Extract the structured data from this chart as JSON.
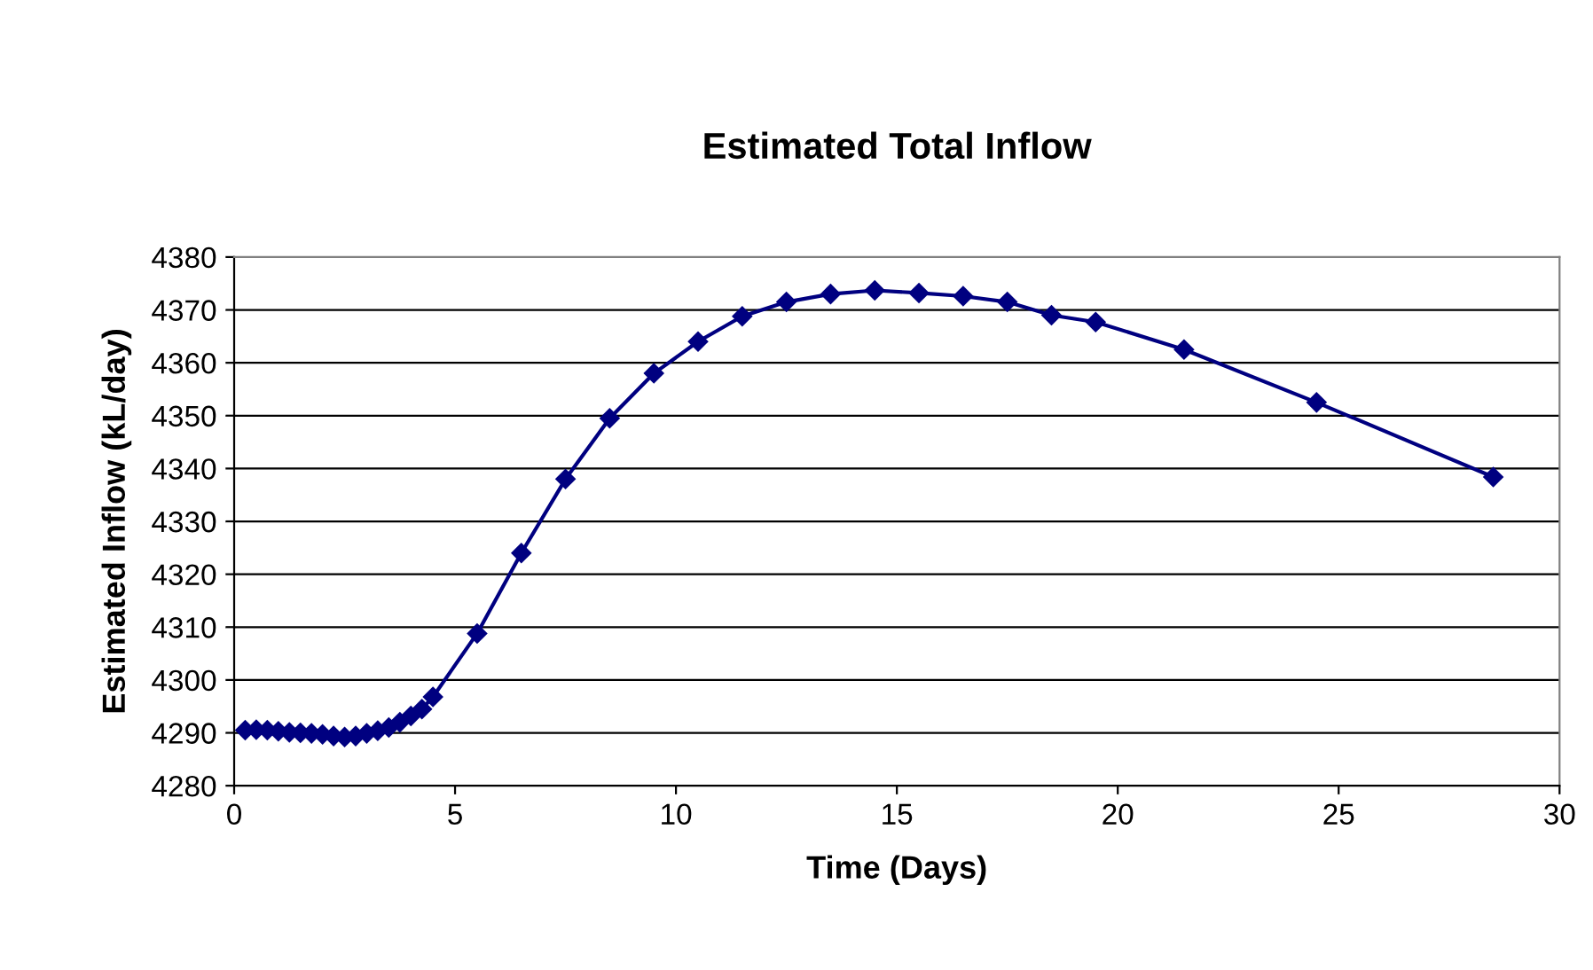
{
  "chart_data": {
    "type": "line",
    "title": "Estimated Total Inflow",
    "xlabel": "Time (Days)",
    "ylabel": "Estimated Inflow (kL/day)",
    "series": [
      {
        "color": "#000080",
        "x": [
          0.25,
          0.5,
          0.75,
          1.0,
          1.25,
          1.5,
          1.75,
          2.0,
          2.25,
          2.5,
          2.75,
          3.0,
          3.25,
          3.5,
          3.75,
          4.0,
          4.25,
          4.5,
          5.5,
          6.5,
          7.5,
          8.5,
          9.5,
          10.5,
          11.5,
          12.5,
          13.5,
          14.5,
          15.5,
          16.5,
          17.5,
          18.5,
          19.5,
          21.5,
          24.5,
          28.5
        ],
        "values": [
          4290.5,
          4290.6,
          4290.5,
          4290.3,
          4290.1,
          4290,
          4289.9,
          4289.7,
          4289.4,
          4289.2,
          4289.4,
          4289.9,
          4290.4,
          4291,
          4292,
          4293.2,
          4294.5,
          4296.8,
          4308.8,
          4324,
          4338,
          4349.5,
          4358,
          4364,
          4368.8,
          4371.5,
          4373,
          4373.7,
          4373.2,
          4372.6,
          4371.5,
          4369,
          4367.7,
          4362.5,
          4352.5,
          4338.4
        ]
      }
    ],
    "xlim": [
      0,
      30
    ],
    "xticks": [
      0,
      5,
      10,
      15,
      20,
      25,
      30
    ],
    "ylim": [
      4280,
      4380
    ],
    "yticks": [
      4280,
      4290,
      4300,
      4310,
      4320,
      4330,
      4340,
      4350,
      4360,
      4370,
      4380
    ],
    "grid": "y",
    "marker": "diamond",
    "line_style": "solid",
    "legend": false
  }
}
